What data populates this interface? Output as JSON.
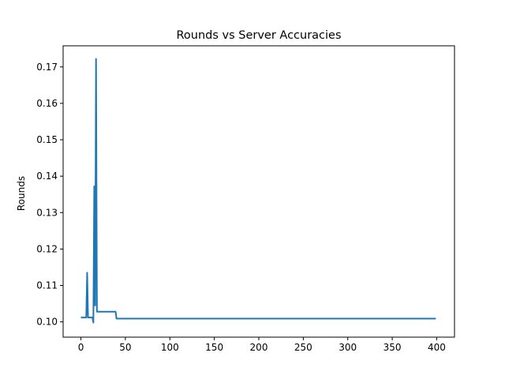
{
  "chart_data": {
    "type": "line",
    "title": "Rounds vs Server Accuracies",
    "xlabel": "",
    "ylabel": "Rounds",
    "xlim": [
      -20,
      420
    ],
    "ylim": [
      0.0958,
      0.1758
    ],
    "xticks": [
      0,
      50,
      100,
      150,
      200,
      250,
      300,
      350,
      400
    ],
    "yticks": [
      0.1,
      0.11,
      0.12,
      0.13,
      0.14,
      0.15,
      0.16,
      0.17
    ],
    "ytick_labels": [
      "0.10",
      "0.11",
      "0.12",
      "0.13",
      "0.14",
      "0.15",
      "0.16",
      "0.17"
    ],
    "grid": false,
    "series": [
      {
        "color": "#1f77b4",
        "x": [
          0,
          5,
          6,
          7,
          8,
          9,
          10,
          11,
          12,
          13,
          14,
          15,
          16,
          17,
          18,
          19,
          20,
          25,
          30,
          35,
          39,
          40,
          41,
          45,
          50,
          100,
          150,
          200,
          250,
          300,
          350,
          399
        ],
        "y": [
          0.1012,
          0.1012,
          0.1012,
          0.1135,
          0.1012,
          0.1012,
          0.1012,
          0.1012,
          0.1012,
          0.1012,
          0.0998,
          0.1372,
          0.1045,
          0.1722,
          0.1028,
          0.1028,
          0.1028,
          0.1028,
          0.1028,
          0.1028,
          0.1028,
          0.1009,
          0.1009,
          0.1009,
          0.1009,
          0.1009,
          0.1009,
          0.1009,
          0.1009,
          0.1009,
          0.1009,
          0.1009
        ]
      }
    ]
  }
}
